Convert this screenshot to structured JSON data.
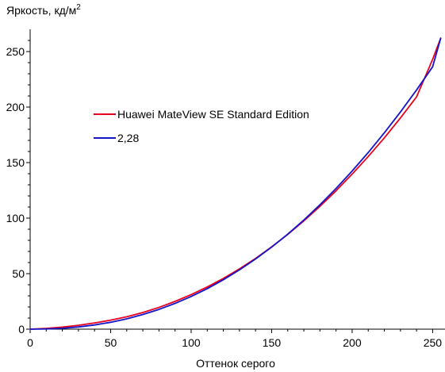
{
  "chart_data": {
    "type": "line",
    "title": "",
    "ylabel": "Яркость, кд/м",
    "ylabel_sup": "2",
    "xlabel": "Оттенок серого",
    "xlim": [
      0,
      256
    ],
    "ylim": [
      0,
      270
    ],
    "x_ticks": [
      0,
      50,
      100,
      150,
      200,
      250
    ],
    "y_ticks": [
      0,
      50,
      100,
      150,
      200,
      250
    ],
    "grid": false,
    "legend_position": "center-left",
    "series": [
      {
        "name": "Huawei MateView SE Standard Edition",
        "color": "#e8001c",
        "x": [
          0,
          10,
          20,
          30,
          40,
          50,
          60,
          70,
          80,
          90,
          100,
          110,
          120,
          130,
          140,
          150,
          160,
          170,
          180,
          190,
          200,
          210,
          220,
          230,
          240,
          250,
          255
        ],
        "y": [
          0,
          0.7,
          1.9,
          3.5,
          5.6,
          8.1,
          11.2,
          15.0,
          19.6,
          25.0,
          31.1,
          38.0,
          45.7,
          54.3,
          63.7,
          74.1,
          85.3,
          97.5,
          110.6,
          124.6,
          139.6,
          155.5,
          172.3,
          190.2,
          209.2,
          243.0,
          262.0
        ]
      },
      {
        "name": "2,28",
        "color": "#1414c8",
        "x": [
          0,
          10,
          20,
          30,
          40,
          50,
          60,
          70,
          80,
          90,
          100,
          110,
          120,
          130,
          140,
          150,
          160,
          170,
          180,
          190,
          200,
          210,
          220,
          230,
          240,
          250,
          255
        ],
        "y": [
          0,
          0.17,
          0.82,
          2.0,
          3.8,
          6.2,
          9.3,
          13.2,
          17.8,
          23.2,
          29.4,
          36.5,
          44.5,
          53.4,
          63.2,
          73.9,
          85.6,
          98.3,
          112.0,
          126.7,
          142.4,
          159.1,
          176.8,
          195.6,
          215.4,
          236.3,
          262.0
        ]
      }
    ]
  }
}
